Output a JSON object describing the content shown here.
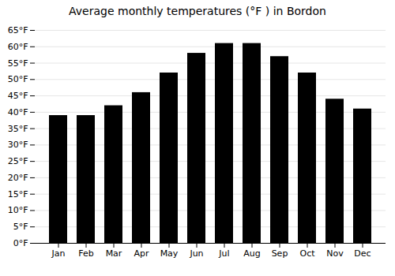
{
  "chart_data": {
    "type": "bar",
    "title": "Average monthly temperatures (°F ) in Bordon",
    "categories": [
      "Jan",
      "Feb",
      "Mar",
      "Apr",
      "May",
      "Jun",
      "Jul",
      "Aug",
      "Sep",
      "Oct",
      "Nov",
      "Dec"
    ],
    "values": [
      39,
      39,
      42,
      46,
      52,
      58,
      61,
      61,
      57,
      52,
      44,
      41
    ],
    "ylim": [
      0,
      65
    ],
    "yticks": [
      {
        "value": 0,
        "label": "0°F"
      },
      {
        "value": 5,
        "label": "5°F"
      },
      {
        "value": 10,
        "label": "10°F"
      },
      {
        "value": 15,
        "label": "15°F"
      },
      {
        "value": 20,
        "label": "20°F"
      },
      {
        "value": 25,
        "label": "25°F"
      },
      {
        "value": 30,
        "label": "30°F"
      },
      {
        "value": 35,
        "label": "35°F"
      },
      {
        "value": 40,
        "label": "40°F"
      },
      {
        "value": 45,
        "label": "45°F"
      },
      {
        "value": 50,
        "label": "50°F"
      },
      {
        "value": 55,
        "label": "55°F"
      },
      {
        "value": 60,
        "label": "60°F"
      },
      {
        "value": 65,
        "label": "65°F"
      }
    ],
    "grid": true
  }
}
